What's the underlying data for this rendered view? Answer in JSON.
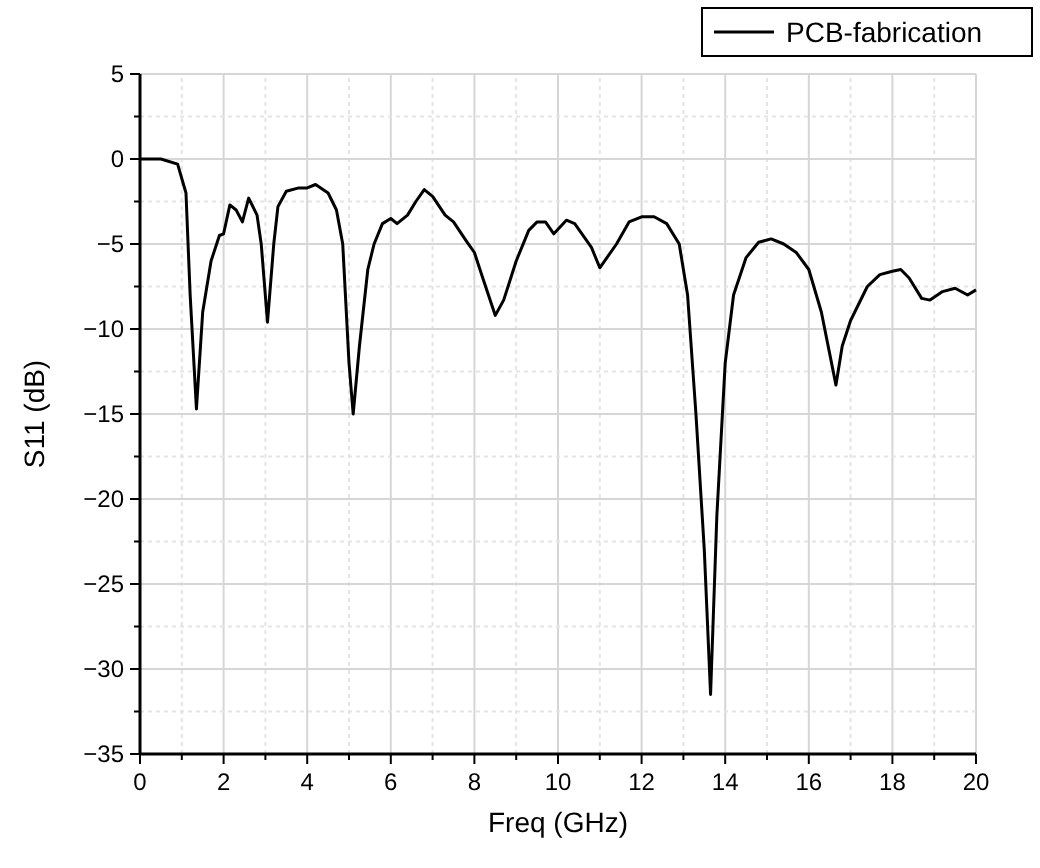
{
  "chart_data": {
    "type": "line",
    "xlabel": "Freq (GHz)",
    "ylabel": "S11 (dB)",
    "xlim": [
      0,
      20
    ],
    "ylim": [
      -35,
      5
    ],
    "xticks": [
      0,
      {
        "value": 1,
        "label": null
      },
      2,
      {
        "value": 3,
        "label": null
      },
      4,
      {
        "value": 5,
        "label": null
      },
      6,
      {
        "value": 7,
        "label": null
      },
      8,
      {
        "value": 9,
        "label": null
      },
      10,
      {
        "value": 11,
        "label": null
      },
      12,
      {
        "value": 13,
        "label": null
      },
      14,
      {
        "value": 15,
        "label": null
      },
      16,
      {
        "value": 17,
        "label": null
      },
      18,
      {
        "value": 19,
        "label": null
      },
      20
    ],
    "yticks": [
      -35,
      {
        "value": -32.5,
        "label": null
      },
      -30,
      {
        "value": -27.5,
        "label": null
      },
      -25,
      {
        "value": -22.5,
        "label": null
      },
      -20,
      {
        "value": -17.5,
        "label": null
      },
      -15,
      {
        "value": -12.5,
        "label": null
      },
      -10,
      {
        "value": -7.5,
        "label": null
      },
      -5,
      {
        "value": -2.5,
        "label": null
      },
      0,
      {
        "value": 2.5,
        "label": null
      },
      5
    ],
    "grid": true,
    "legend": "top right",
    "line_style": "solid",
    "series": [
      {
        "name": "PCB-fabrication",
        "color": "#000000",
        "x": [
          0,
          0.5,
          0.9,
          1.1,
          1.2,
          1.35,
          1.5,
          1.7,
          1.9,
          2.0,
          2.15,
          2.3,
          2.45,
          2.6,
          2.8,
          2.9,
          3.05,
          3.2,
          3.3,
          3.5,
          3.8,
          4.0,
          4.2,
          4.5,
          4.7,
          4.85,
          5.0,
          5.1,
          5.25,
          5.45,
          5.6,
          5.8,
          6.0,
          6.15,
          6.4,
          6.6,
          6.8,
          7.0,
          7.3,
          7.5,
          7.8,
          8.0,
          8.2,
          8.5,
          8.7,
          9.0,
          9.3,
          9.5,
          9.7,
          9.9,
          10.2,
          10.4,
          10.8,
          11.0,
          11.4,
          11.7,
          12.0,
          12.3,
          12.6,
          12.9,
          13.1,
          13.3,
          13.5,
          13.65,
          13.8,
          14.0,
          14.2,
          14.5,
          14.8,
          15.1,
          15.4,
          15.7,
          16.0,
          16.3,
          16.65,
          16.8,
          17.0,
          17.4,
          17.7,
          18.0,
          18.2,
          18.4,
          18.7,
          18.9,
          19.2,
          19.5,
          19.8,
          20.0
        ],
        "values": [
          0,
          0,
          -0.3,
          -2,
          -8,
          -14.7,
          -9,
          -6,
          -4.5,
          -4.4,
          -2.7,
          -3.0,
          -3.7,
          -2.3,
          -3.3,
          -5,
          -9.6,
          -5,
          -2.8,
          -1.9,
          -1.7,
          -1.7,
          -1.5,
          -2,
          -3,
          -5,
          -12,
          -15,
          -11,
          -6.5,
          -5,
          -3.8,
          -3.5,
          -3.8,
          -3.3,
          -2.5,
          -1.8,
          -2.2,
          -3.3,
          -3.7,
          -4.8,
          -5.5,
          -7,
          -9.2,
          -8.3,
          -6,
          -4.2,
          -3.7,
          -3.7,
          -4.4,
          -3.6,
          -3.8,
          -5.2,
          -6.4,
          -5,
          -3.7,
          -3.4,
          -3.4,
          -3.8,
          -5,
          -8,
          -15,
          -23,
          -31.5,
          -21,
          -12,
          -8,
          -5.8,
          -4.9,
          -4.7,
          -5,
          -5.5,
          -6.5,
          -9,
          -13.3,
          -11,
          -9.5,
          -7.5,
          -6.8,
          -6.6,
          -6.5,
          -7,
          -8.2,
          -8.3,
          -7.8,
          -7.6,
          -8,
          -7.7
        ]
      }
    ]
  }
}
